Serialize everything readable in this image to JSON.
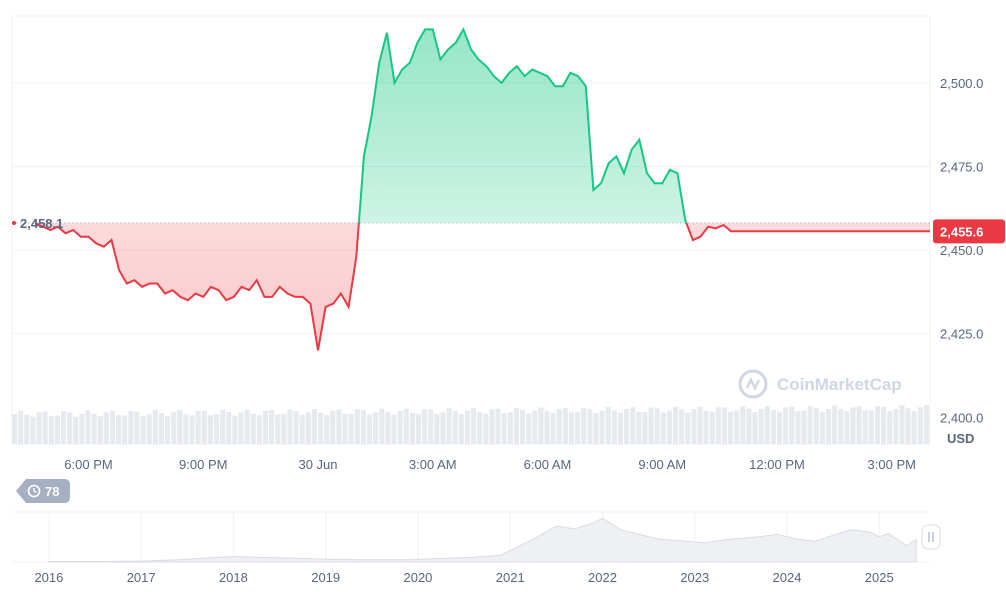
{
  "chart_data": {
    "type": "line",
    "unit_label": "USD",
    "reference_value": 2458.1,
    "reference_label": "2,458.1",
    "current_value": 2455.6,
    "current_label": "2,455.6",
    "ylim": [
      2392,
      2520
    ],
    "y_ticks": [
      {
        "value": 2500,
        "label": "2,500.0"
      },
      {
        "value": 2475,
        "label": "2,475.0"
      },
      {
        "value": 2450,
        "label": "2,450.0"
      },
      {
        "value": 2425,
        "label": "2,425.0"
      },
      {
        "value": 2400,
        "label": "2,400.0"
      }
    ],
    "x_ticks": [
      {
        "hour": 2.0,
        "label": "6:00 PM"
      },
      {
        "hour": 5.0,
        "label": "9:00 PM"
      },
      {
        "hour": 8.0,
        "label": "30 Jun"
      },
      {
        "hour": 11.0,
        "label": "3:00 AM"
      },
      {
        "hour": 14.0,
        "label": "6:00 AM"
      },
      {
        "hour": 17.0,
        "label": "9:00 AM"
      },
      {
        "hour": 20.0,
        "label": "12:00 PM"
      },
      {
        "hour": 23.0,
        "label": "3:00 PM"
      }
    ],
    "xlim": [
      0.0,
      24.0
    ],
    "series": [
      {
        "x": [
          0.6,
          1.0,
          1.2,
          1.4,
          1.6,
          1.8,
          2.0,
          2.2,
          2.4,
          2.6,
          2.8,
          3.0,
          3.2,
          3.4,
          3.6,
          3.8,
          4.0,
          4.2,
          4.4,
          4.6,
          4.8,
          5.0,
          5.2,
          5.4,
          5.6,
          5.8,
          6.0,
          6.2,
          6.4,
          6.6,
          6.8,
          7.0,
          7.2,
          7.4,
          7.6,
          7.8,
          8.0,
          8.2,
          8.4,
          8.6,
          8.8,
          9.0,
          9.2,
          9.4,
          9.6,
          9.8,
          10.0,
          10.2,
          10.4,
          10.6,
          10.8,
          11.0,
          11.2,
          11.4,
          11.6,
          11.8,
          12.0,
          12.2,
          12.4,
          12.6,
          12.8,
          13.0,
          13.2,
          13.4,
          13.6,
          13.8,
          14.0,
          14.2,
          14.4,
          14.6,
          14.8,
          15.0,
          15.2,
          15.4,
          15.6,
          15.8,
          16.0,
          16.2,
          16.4,
          16.6,
          16.8,
          17.0,
          17.2,
          17.4,
          17.6,
          17.8,
          18.0,
          18.2,
          18.4,
          18.6,
          18.8,
          19.0,
          19.2,
          19.4,
          19.6,
          19.8,
          20.0,
          20.2,
          20.4,
          20.6,
          20.8,
          21.0,
          21.2,
          21.4,
          21.6,
          21.8,
          22.0,
          22.2,
          22.4,
          22.6,
          22.8,
          23.0,
          23.2,
          23.4,
          23.6,
          23.8,
          24.0
        ],
        "y": [
          2458.1,
          2456,
          2457,
          2455,
          2456,
          2454,
          2454,
          2452,
          2451,
          2453,
          2444,
          2440,
          2441,
          2439,
          2440,
          2440,
          2437,
          2438,
          2436,
          2435,
          2437,
          2436,
          2439,
          2438,
          2435,
          2436,
          2439,
          2438,
          2441,
          2436,
          2436,
          2439,
          2437,
          2436,
          2436,
          2434,
          2420,
          2433,
          2434,
          2437,
          2433,
          2448,
          2478,
          2490,
          2506,
          2515,
          2500,
          2504,
          2506,
          2512,
          2516,
          2516,
          2507,
          2510,
          2512,
          2516,
          2510,
          2507,
          2505,
          2502,
          2500,
          2503,
          2505,
          2502,
          2504,
          2503,
          2502,
          2499,
          2499,
          2503,
          2502,
          2499,
          2468,
          2470,
          2476,
          2478,
          2473,
          2480,
          2483,
          2473,
          2470,
          2470,
          2474,
          2473,
          2459,
          2453,
          2454,
          2457,
          2456.5,
          2457.5,
          2455.6,
          2455.6,
          2455.6,
          2455.6,
          2455.6,
          2455.6,
          2455.6,
          2455.6,
          2455.6,
          2455.6,
          2455.6,
          2455.6,
          2455.6,
          2455.6,
          2455.6,
          2455.6,
          2455.6,
          2455.6,
          2455.6,
          2455.6,
          2455.6,
          2455.6,
          2455.6,
          2455.6,
          2455.6,
          2455.6,
          2455.6
        ]
      }
    ],
    "colors": {
      "up": "#16c784",
      "down": "#ea3943",
      "up_fill": "#16c784",
      "down_fill": "#ea3943",
      "grid": "#eff2f5",
      "volume": "#e6e9ee",
      "reference_dots": "#b4bac4"
    },
    "navigator": {
      "x_ticks": [
        "2016",
        "2017",
        "2018",
        "2019",
        "2020",
        "2021",
        "2022",
        "2023",
        "2024",
        "2025"
      ],
      "years": [
        2016,
        2017,
        2018,
        2019,
        2020,
        2021,
        2022,
        2023,
        2024,
        2025
      ],
      "values": [
        0.01,
        0.01,
        0.02,
        0.05,
        0.12,
        0.1,
        0.08,
        0.06,
        0.05,
        0.05,
        0.08,
        0.1,
        0.15,
        0.35,
        0.55,
        0.78,
        0.72,
        0.85,
        0.95,
        0.7,
        0.6,
        0.5,
        0.45,
        0.42,
        0.5,
        0.55,
        0.6,
        0.5,
        0.45,
        0.58,
        0.7,
        0.65,
        0.55,
        0.62,
        0.35,
        0.5
      ],
      "values_years": [
        2016.0,
        2016.5,
        2017.0,
        2017.4,
        2018.0,
        2018.3,
        2018.7,
        2019.0,
        2019.4,
        2019.9,
        2020.3,
        2020.6,
        2020.9,
        2021.1,
        2021.3,
        2021.5,
        2021.7,
        2021.9,
        2022.0,
        2022.2,
        2022.4,
        2022.6,
        2022.9,
        2023.1,
        2023.4,
        2023.7,
        2023.9,
        2024.1,
        2024.3,
        2024.5,
        2024.7,
        2024.9,
        2025.0,
        2025.1,
        2025.3,
        2025.4
      ]
    },
    "badge": {
      "icon": "history-icon",
      "count": "78"
    },
    "brand": "CoinMarketCap"
  }
}
